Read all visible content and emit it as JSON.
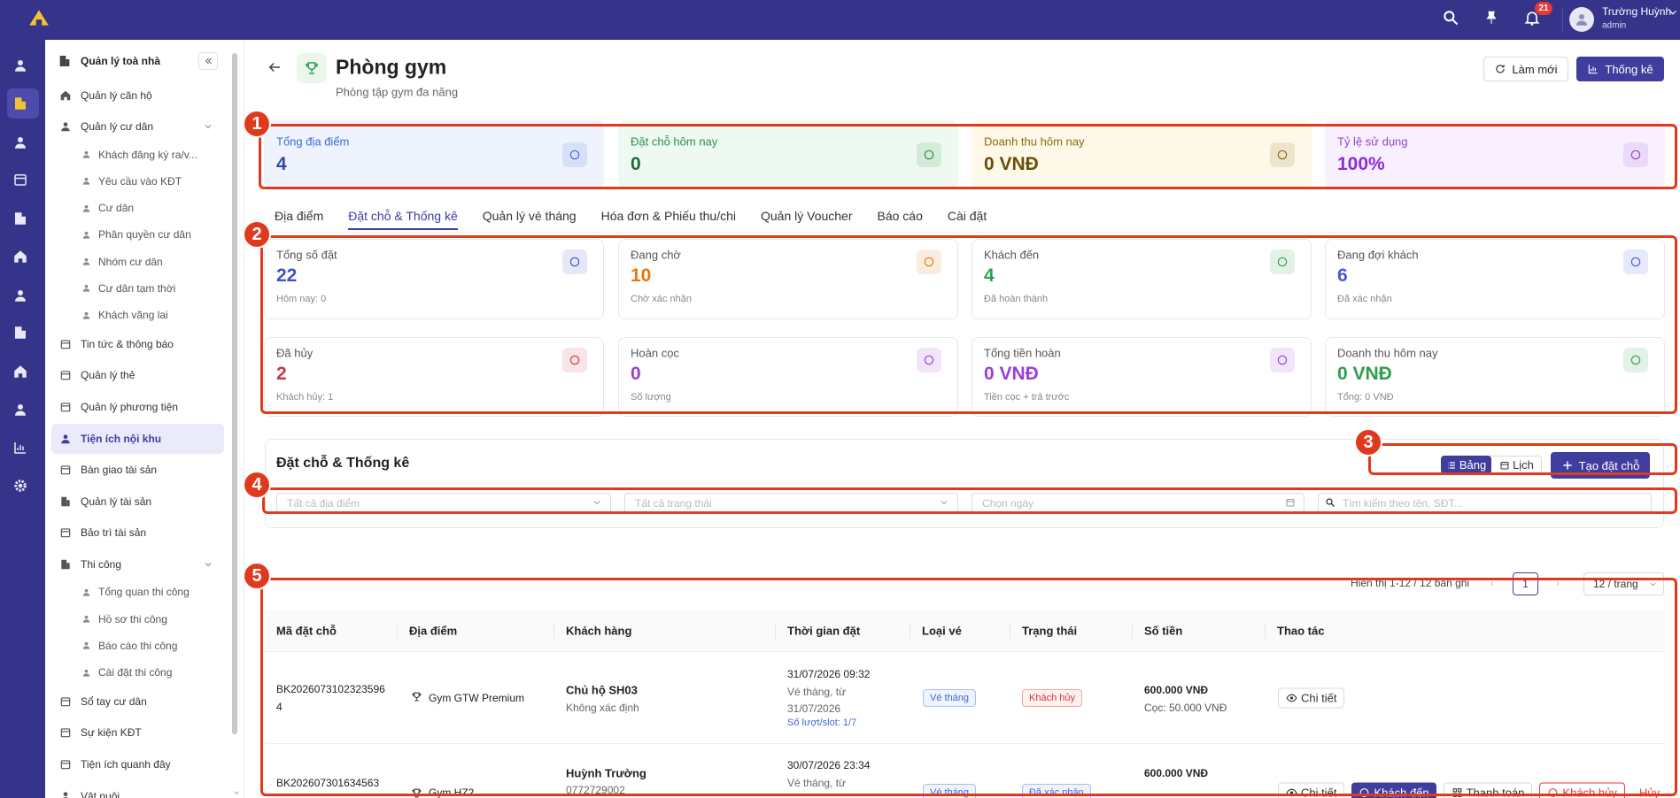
{
  "topbar": {
    "notification_count": "21",
    "user_name": "Trường Huỳnh",
    "user_role": "admin"
  },
  "sidebar": {
    "title": "Quản lý toà nhà",
    "items": [
      {
        "label": "Quản lý căn hộ"
      },
      {
        "label": "Quản lý cư dân",
        "children": [
          "Khách đăng ký ra/v...",
          "Yêu cầu vào KĐT",
          "Cư dân",
          "Phân quyền cư dân",
          "Nhóm cư dân",
          "Cư dân tạm thời",
          "Khách vãng lai"
        ]
      },
      {
        "label": "Tin tức & thông báo"
      },
      {
        "label": "Quản lý thẻ"
      },
      {
        "label": "Quản lý phương tiện"
      },
      {
        "label": "Tiện ích nội khu",
        "active": true
      },
      {
        "label": "Bàn giao tài sản"
      },
      {
        "label": "Quản lý tài sản"
      },
      {
        "label": "Bảo trì tài sản"
      },
      {
        "label": "Thi công",
        "children": [
          "Tổng quan thi công",
          "Hồ sơ thi công",
          "Báo cáo thi công",
          "Cài đặt thi công"
        ]
      },
      {
        "label": "Sổ tay cư dân"
      },
      {
        "label": "Sự kiện KĐT"
      },
      {
        "label": "Tiện ích quanh đây"
      },
      {
        "label": "Vật nuôi"
      }
    ]
  },
  "header": {
    "title": "Phòng gym",
    "subtitle": "Phòng tập gym đa năng",
    "refresh_button": "Làm mới",
    "stats_button": "Thống kê"
  },
  "summary_cards": [
    {
      "label": "Tổng địa điểm",
      "value": "4",
      "bg": "#eef3fe",
      "label_color": "#3d6ad6",
      "value_color": "#2f4aa8"
    },
    {
      "label": "Đặt chỗ hôm nay",
      "value": "0",
      "bg": "#eefaf1",
      "label_color": "#2e8b4e",
      "value_color": "#25683a"
    },
    {
      "label": "Doanh thu hôm nay",
      "value": "0 VNĐ",
      "bg": "#fdf8e7",
      "label_color": "#8a6a14",
      "value_color": "#6b4d0c"
    },
    {
      "label": "Tỷ lệ sử dụng",
      "value": "100%",
      "bg": "#f8f0fe",
      "label_color": "#8e44c9",
      "value_color": "#8a2be2"
    }
  ],
  "tabs": [
    "Địa điểm",
    "Đặt chỗ & Thống kê",
    "Quản lý vé tháng",
    "Hóa đơn & Phiếu thu/chi",
    "Quản lý Voucher",
    "Báo cáo",
    "Cài đặt"
  ],
  "active_tab": 1,
  "stat_cards": [
    {
      "label": "Tổng số đặt",
      "value": "22",
      "note": "Hôm nay: 0",
      "color": "#3f51c8"
    },
    {
      "label": "Đang chờ",
      "value": "10",
      "note": "Chờ xác nhận",
      "color": "#e8740c"
    },
    {
      "label": "Khách đến",
      "value": "4",
      "note": "Đã hoàn thành",
      "color": "#2e9e4e"
    },
    {
      "label": "Đang đợi khách",
      "value": "6",
      "note": "Đã xác nhận",
      "color": "#4757d6"
    },
    {
      "label": "Đã hủy",
      "value": "2",
      "note": "Khách hủy: 1",
      "color": "#d0353f"
    },
    {
      "label": "Hoàn cọc",
      "value": "0",
      "note": "Số lượng",
      "color": "#9b3fd6"
    },
    {
      "label": "Tổng tiền hoàn",
      "value": "0 VNĐ",
      "note": "Tiền cọc + trả trước",
      "color": "#9b3fd6"
    },
    {
      "label": "Doanh thu hôm nay",
      "value": "0 VNĐ",
      "note": "Tổng: 0 VNĐ",
      "color": "#2e9e4e"
    }
  ],
  "bookings": {
    "title": "Đặt chỗ & Thống kê",
    "view_buttons": [
      "Bảng",
      "Lịch"
    ],
    "create_button": "Tạo đặt chỗ",
    "filters": [
      "Tất cả địa điểm",
      "Tất cả trạng thái",
      "Chọn ngày",
      "Tìm kiếm theo tên, SĐT..."
    ],
    "pagination": {
      "summary": "Hiển thị 1-12 / 12 bản ghi",
      "current_page": "1",
      "page_size": "12 / trang"
    },
    "columns": [
      "Mã đặt chỗ",
      "Địa điểm",
      "Khách hàng",
      "Thời gian đặt",
      "Loại vé",
      "Trạng thái",
      "Số tiền",
      "Thao tác"
    ],
    "rows": [
      {
        "code": "BK20260731023235964",
        "location": "Gym GTW Premium",
        "customer": "Chủ hộ SH03",
        "customer_sub": "Không xác định",
        "time": "31/07/2026 09:32",
        "time_note": "Vé tháng, từ 31/07/2026",
        "slots": "Số lượt/slot: 1/7",
        "ticket_type": "Vé tháng",
        "status": "Khách hủy",
        "amount": "600.000 VNĐ",
        "deposit": "Cọc: 50.000 VNĐ",
        "actions": [
          "Chi tiết"
        ]
      },
      {
        "code": "BK202607301634563",
        "location": "Gym HZ2",
        "customer": "Huỳnh Trường",
        "customer_sub": "0772729002",
        "time": "30/07/2026 23:34",
        "time_note": "Vé tháng, từ",
        "ticket_type": "Vé tháng",
        "status": "Đã xác nhận",
        "amount": "600.000 VNĐ",
        "actions": [
          "Chi tiết",
          "Khách đến",
          "Thanh toán",
          "Khách hủy",
          "Hủy"
        ]
      }
    ]
  },
  "annotations": [
    "1",
    "2",
    "3",
    "4",
    "5"
  ]
}
